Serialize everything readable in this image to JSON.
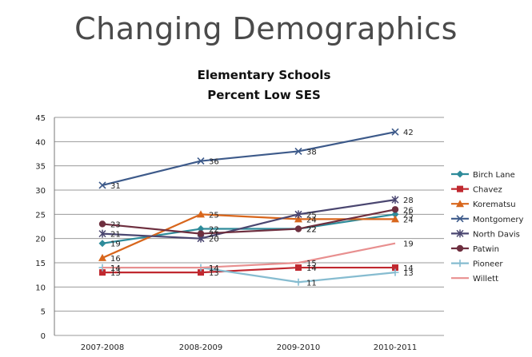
{
  "slide": {
    "title": "Changing Demographics"
  },
  "chart_data": {
    "type": "line",
    "title": "Elementary Schools",
    "subtitle": "Percent Low SES",
    "xlabel": "",
    "ylabel": "",
    "ylim": [
      0,
      45
    ],
    "yticks": [
      0,
      5,
      10,
      15,
      20,
      25,
      30,
      35,
      40,
      45
    ],
    "grid": true,
    "legend": "right",
    "categories": [
      "2007-2008",
      "2008-2009",
      "2009-2010",
      "2010-2011"
    ],
    "series": [
      {
        "name": "Birch Lane",
        "color": "#2e8b9a",
        "marker": "diamond",
        "values": [
          19,
          22,
          22,
          25
        ]
      },
      {
        "name": "Chavez",
        "color": "#c0282f",
        "marker": "square",
        "values": [
          13,
          13,
          14,
          14
        ]
      },
      {
        "name": "Korematsu",
        "color": "#d8661c",
        "marker": "triangle",
        "values": [
          16,
          25,
          24,
          24
        ]
      },
      {
        "name": "Montgomery",
        "color": "#3d5a8a",
        "marker": "x",
        "values": [
          31,
          36,
          38,
          42
        ]
      },
      {
        "name": "North Davis",
        "color": "#4a4670",
        "marker": "star",
        "values": [
          21,
          20,
          25,
          28
        ]
      },
      {
        "name": "Patwin",
        "color": "#6e2f3f",
        "marker": "circle",
        "values": [
          23,
          21,
          22,
          26
        ]
      },
      {
        "name": "Pioneer",
        "color": "#86bcd0",
        "marker": "plus",
        "values": [
          14,
          14,
          11,
          13
        ]
      },
      {
        "name": "Willett",
        "color": "#e88f8f",
        "marker": "none",
        "values": [
          14,
          14,
          15,
          19
        ]
      }
    ]
  }
}
